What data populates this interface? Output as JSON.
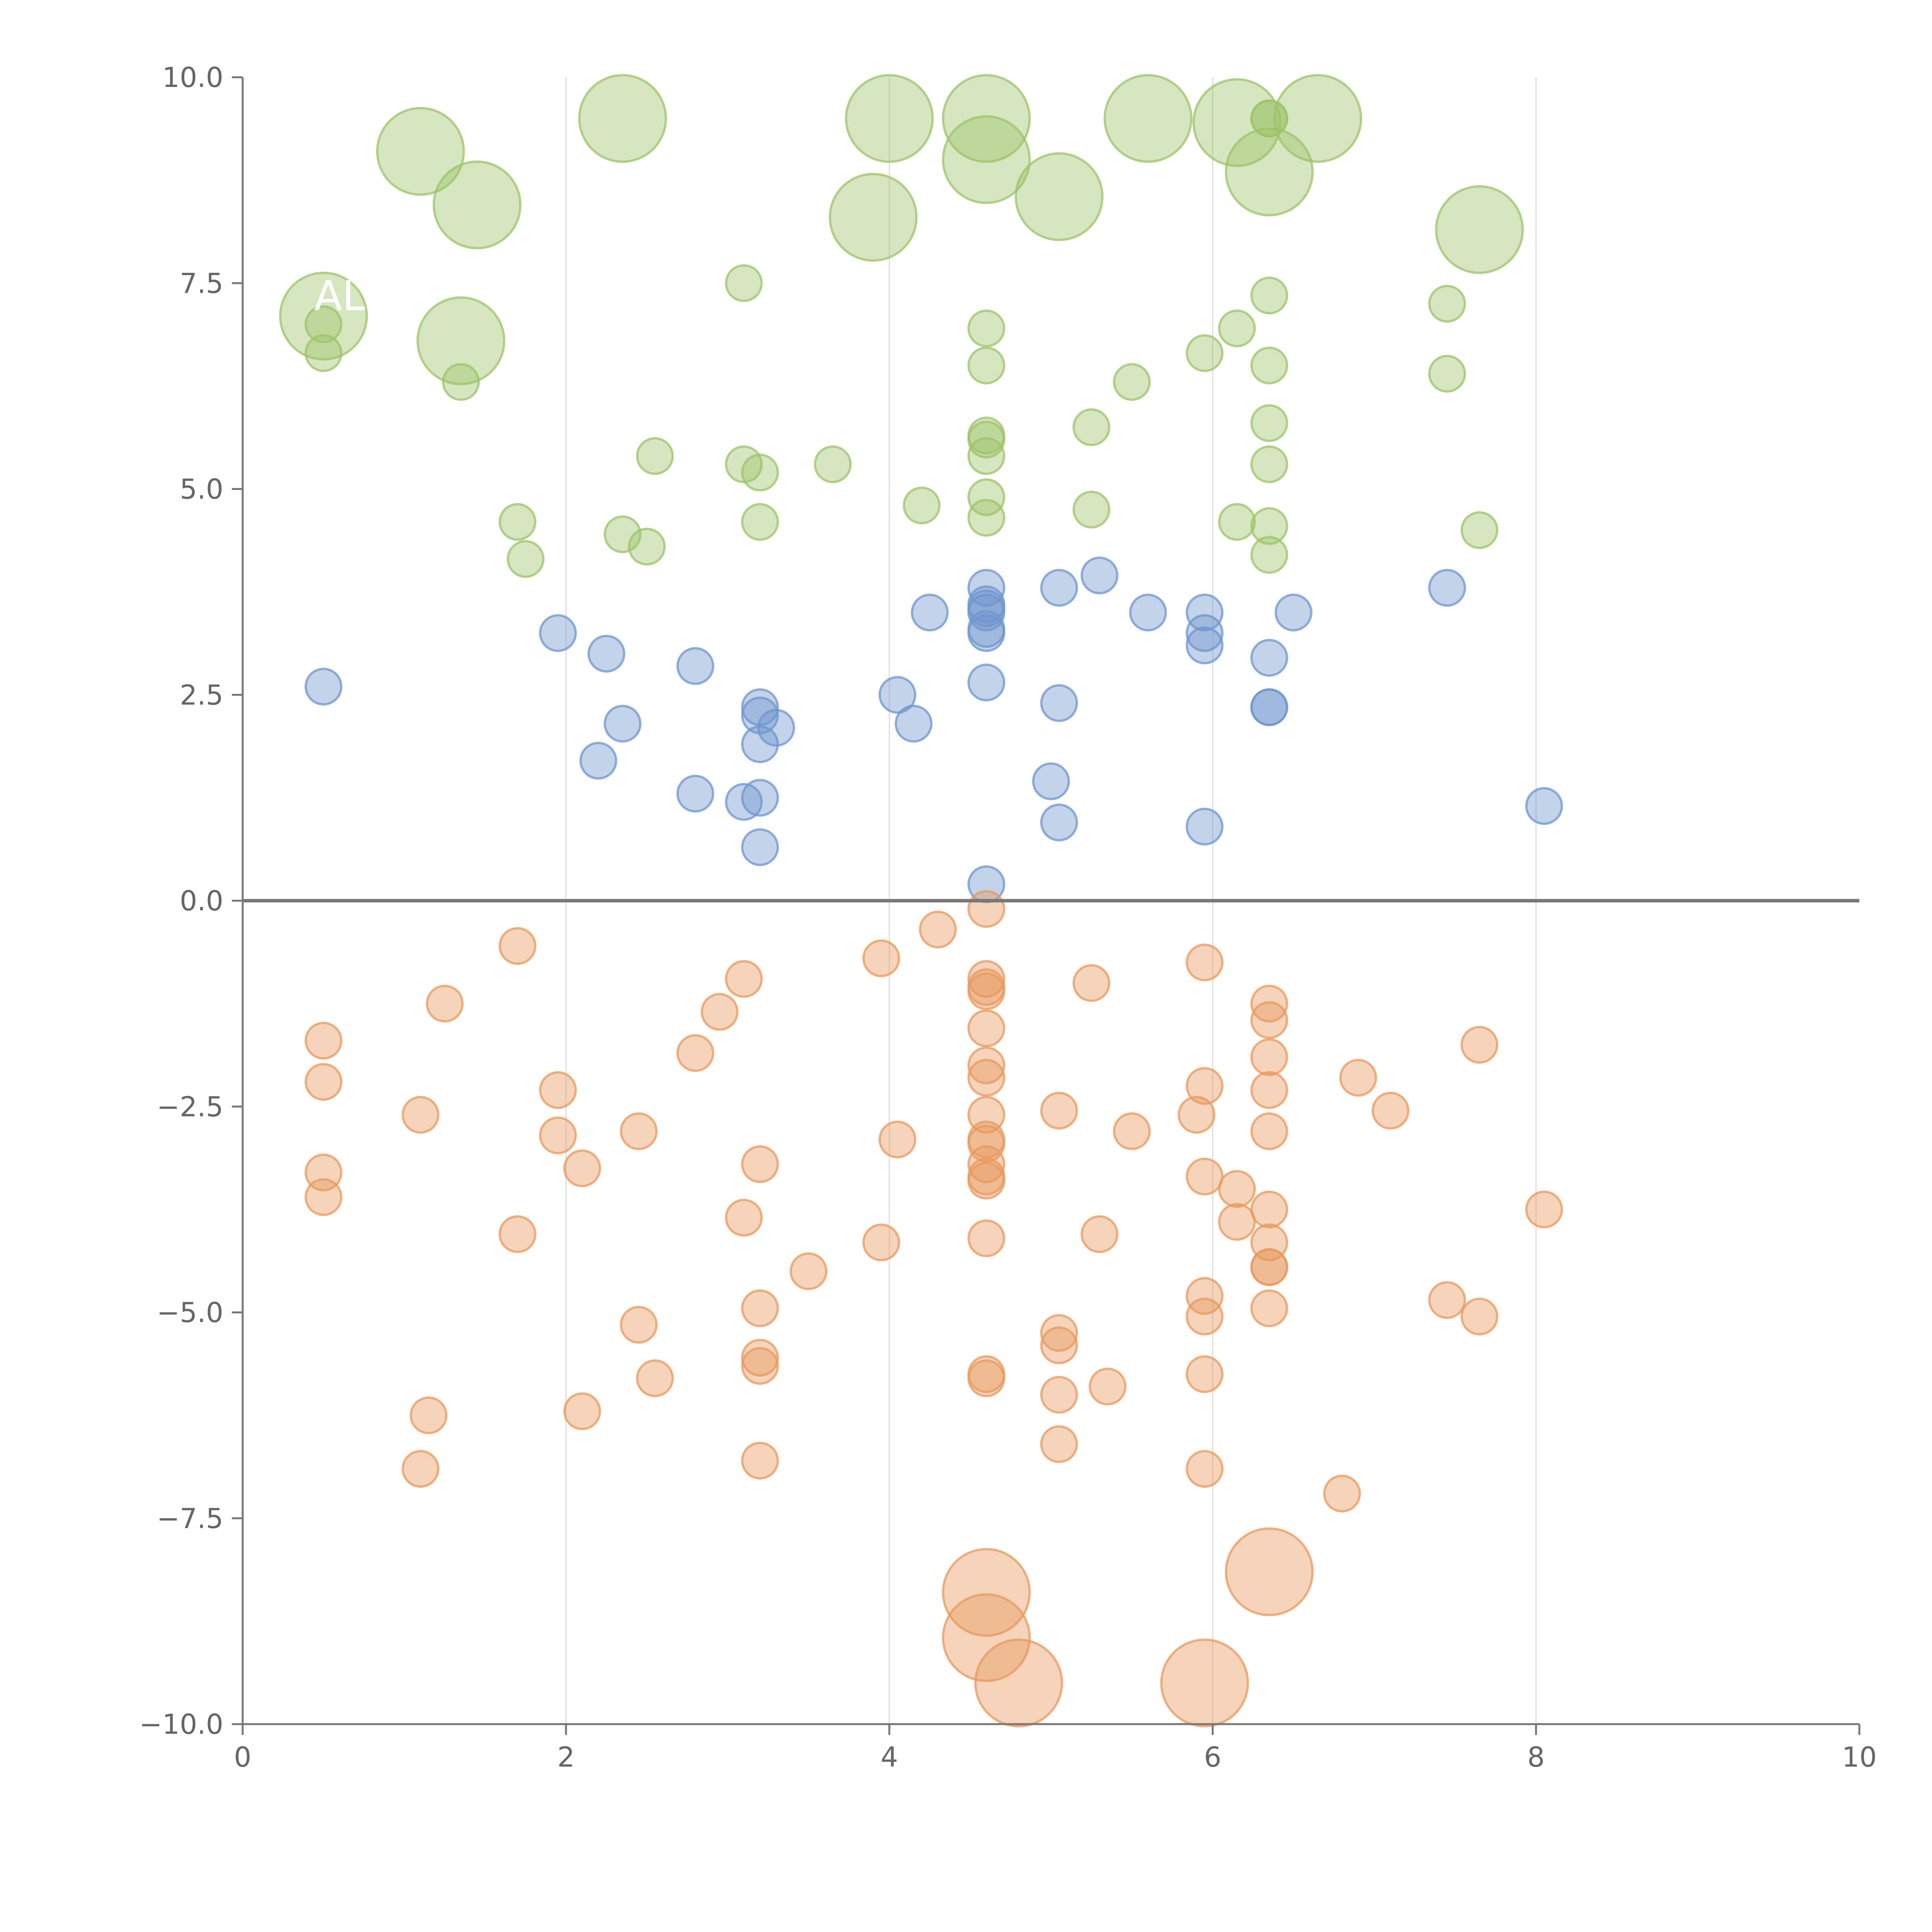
{
  "chart_data": {
    "type": "scatter",
    "title": "",
    "xlabel": "",
    "ylabel": "",
    "xlim": [
      0,
      10
    ],
    "ylim": [
      -10,
      10
    ],
    "x_ticks": [
      0,
      2,
      4,
      6,
      8,
      10
    ],
    "x_tick_labels": [
      "0",
      "2",
      "4",
      "6",
      "8",
      "10"
    ],
    "y_ticks": [
      -10,
      -7.5,
      -5,
      -2.5,
      0,
      2.5,
      5,
      7.5,
      10
    ],
    "y_tick_labels": [
      "−10.0",
      "−7.5",
      "−5.0",
      "−2.5",
      "0.0",
      "2.5",
      "5.0",
      "7.5",
      "10.0"
    ],
    "vertical_grid": true,
    "horizontal_grid": false,
    "reference_line_y": 0,
    "legend": "none",
    "colors": {
      "green": "#9dc36a",
      "blue": "#6f95cd",
      "orange": "#e8995d",
      "axis": "#777777",
      "grid": "#dddddd",
      "zero_line": "#777777"
    },
    "series": [
      {
        "color": "green",
        "points": [
          [
            0.5,
            7.0
          ],
          [
            0.5,
            6.65
          ],
          [
            1.35,
            6.3
          ],
          [
            3.1,
            7.5
          ],
          [
            4.6,
            6.95
          ],
          [
            4.6,
            6.5
          ],
          [
            4.6,
            5.65
          ],
          [
            4.6,
            5.6
          ],
          [
            4.6,
            5.4
          ],
          [
            4.6,
            4.9
          ],
          [
            4.6,
            4.65
          ],
          [
            5.5,
            6.3
          ],
          [
            5.95,
            6.65
          ],
          [
            6.15,
            6.95
          ],
          [
            6.35,
            7.35
          ],
          [
            6.35,
            6.5
          ],
          [
            6.35,
            5.8
          ],
          [
            6.35,
            5.3
          ],
          [
            6.35,
            4.55
          ],
          [
            6.35,
            4.2
          ],
          [
            7.45,
            7.25
          ],
          [
            7.45,
            6.4
          ],
          [
            7.65,
            4.5
          ],
          [
            5.25,
            5.75
          ],
          [
            5.25,
            4.75
          ],
          [
            6.15,
            4.6
          ],
          [
            4.2,
            4.8
          ],
          [
            3.65,
            5.3
          ],
          [
            3.1,
            5.3
          ],
          [
            3.2,
            5.2
          ],
          [
            3.2,
            4.6
          ],
          [
            2.55,
            5.4
          ],
          [
            2.35,
            4.45
          ],
          [
            2.5,
            4.3
          ],
          [
            1.7,
            4.6
          ],
          [
            1.75,
            4.15
          ],
          [
            6.35,
            9.5
          ],
          [
            6.35,
            9.5
          ]
        ]
      },
      {
        "color": "green",
        "size": "large",
        "points": [
          [
            0.5,
            7.1
          ],
          [
            1.35,
            6.8
          ],
          [
            1.1,
            9.1
          ],
          [
            1.45,
            8.45
          ],
          [
            2.35,
            9.5
          ],
          [
            3.9,
            8.3
          ],
          [
            4.0,
            9.5
          ],
          [
            4.6,
            9.5
          ],
          [
            4.6,
            9.0
          ],
          [
            5.05,
            8.55
          ],
          [
            5.6,
            9.5
          ],
          [
            6.15,
            9.45
          ],
          [
            6.35,
            8.85
          ],
          [
            6.65,
            9.5
          ],
          [
            7.65,
            8.15
          ]
        ]
      },
      {
        "color": "blue",
        "points": [
          [
            0.5,
            2.6
          ],
          [
            1.95,
            3.25
          ],
          [
            2.25,
            3.0
          ],
          [
            2.35,
            2.15
          ],
          [
            2.2,
            1.7
          ],
          [
            2.8,
            2.85
          ],
          [
            2.8,
            1.3
          ],
          [
            3.1,
            1.2
          ],
          [
            3.2,
            2.35
          ],
          [
            3.2,
            2.25
          ],
          [
            3.3,
            2.1
          ],
          [
            3.2,
            1.9
          ],
          [
            3.2,
            1.25
          ],
          [
            3.2,
            0.65
          ],
          [
            4.05,
            2.5
          ],
          [
            4.15,
            2.15
          ],
          [
            4.25,
            3.5
          ],
          [
            4.6,
            3.8
          ],
          [
            4.6,
            3.6
          ],
          [
            4.6,
            3.55
          ],
          [
            4.6,
            3.5
          ],
          [
            4.6,
            3.3
          ],
          [
            4.6,
            3.25
          ],
          [
            4.6,
            2.65
          ],
          [
            4.6,
            0.2
          ],
          [
            5.05,
            3.8
          ],
          [
            5.3,
            3.95
          ],
          [
            5.05,
            2.4
          ],
          [
            5.0,
            1.45
          ],
          [
            5.05,
            0.95
          ],
          [
            5.6,
            3.5
          ],
          [
            5.95,
            3.5
          ],
          [
            5.95,
            3.25
          ],
          [
            5.95,
            3.1
          ],
          [
            5.95,
            0.9
          ],
          [
            6.35,
            2.95
          ],
          [
            6.35,
            2.35
          ],
          [
            6.35,
            2.35
          ],
          [
            6.5,
            3.5
          ],
          [
            7.45,
            3.8
          ],
          [
            8.05,
            1.15
          ]
        ]
      },
      {
        "color": "orange",
        "points": [
          [
            0.5,
            -1.7
          ],
          [
            0.5,
            -2.2
          ],
          [
            0.5,
            -3.3
          ],
          [
            0.5,
            -3.6
          ],
          [
            1.1,
            -2.6
          ],
          [
            1.25,
            -1.25
          ],
          [
            1.15,
            -6.25
          ],
          [
            1.1,
            -6.9
          ],
          [
            1.7,
            -0.55
          ],
          [
            1.7,
            -4.05
          ],
          [
            1.95,
            -2.3
          ],
          [
            1.95,
            -2.85
          ],
          [
            2.1,
            -3.25
          ],
          [
            2.1,
            -6.2
          ],
          [
            2.45,
            -2.8
          ],
          [
            2.45,
            -5.15
          ],
          [
            2.55,
            -5.8
          ],
          [
            2.8,
            -1.85
          ],
          [
            2.95,
            -1.35
          ],
          [
            3.1,
            -0.95
          ],
          [
            3.1,
            -3.85
          ],
          [
            3.2,
            -3.2
          ],
          [
            3.2,
            -4.95
          ],
          [
            3.2,
            -5.55
          ],
          [
            3.2,
            -5.65
          ],
          [
            3.2,
            -6.8
          ],
          [
            3.5,
            -4.5
          ],
          [
            3.95,
            -0.7
          ],
          [
            3.95,
            -4.15
          ],
          [
            4.05,
            -2.9
          ],
          [
            4.3,
            -0.35
          ],
          [
            4.6,
            -0.1
          ],
          [
            4.6,
            -0.95
          ],
          [
            4.6,
            -1.05
          ],
          [
            4.6,
            -1.1
          ],
          [
            4.6,
            -1.55
          ],
          [
            4.6,
            -2.0
          ],
          [
            4.6,
            -2.15
          ],
          [
            4.6,
            -2.6
          ],
          [
            4.6,
            -2.9
          ],
          [
            4.6,
            -2.95
          ],
          [
            4.6,
            -3.2
          ],
          [
            4.6,
            -3.35
          ],
          [
            4.6,
            -3.4
          ],
          [
            4.6,
            -4.1
          ],
          [
            4.6,
            -5.75
          ],
          [
            4.6,
            -5.8
          ],
          [
            5.05,
            -2.55
          ],
          [
            5.05,
            -5.25
          ],
          [
            5.05,
            -5.4
          ],
          [
            5.05,
            -6.0
          ],
          [
            5.05,
            -6.6
          ],
          [
            5.3,
            -4.05
          ],
          [
            5.35,
            -5.9
          ],
          [
            5.25,
            -1.0
          ],
          [
            5.5,
            -2.8
          ],
          [
            5.95,
            -0.75
          ],
          [
            5.95,
            -2.25
          ],
          [
            5.9,
            -2.6
          ],
          [
            5.95,
            -3.35
          ],
          [
            6.15,
            -3.5
          ],
          [
            6.15,
            -3.9
          ],
          [
            5.95,
            -4.8
          ],
          [
            5.95,
            -5.05
          ],
          [
            5.95,
            -5.75
          ],
          [
            5.95,
            -6.9
          ],
          [
            6.35,
            -1.25
          ],
          [
            6.35,
            -1.45
          ],
          [
            6.35,
            -1.9
          ],
          [
            6.35,
            -2.3
          ],
          [
            6.35,
            -2.8
          ],
          [
            6.35,
            -3.75
          ],
          [
            6.35,
            -4.15
          ],
          [
            6.35,
            -4.45
          ],
          [
            6.35,
            -4.45
          ],
          [
            6.35,
            -4.95
          ],
          [
            6.9,
            -2.15
          ],
          [
            7.1,
            -2.55
          ],
          [
            6.8,
            -7.2
          ],
          [
            7.45,
            -4.85
          ],
          [
            7.65,
            -1.75
          ],
          [
            7.65,
            -5.05
          ],
          [
            8.05,
            -3.75
          ]
        ]
      },
      {
        "color": "orange",
        "size": "large",
        "points": [
          [
            4.6,
            -8.4
          ],
          [
            4.6,
            -8.95
          ],
          [
            4.8,
            -9.5
          ],
          [
            5.95,
            -9.5
          ],
          [
            6.35,
            -8.15
          ]
        ]
      }
    ],
    "point_labels": [
      {
        "text": "AL",
        "x": 0.6,
        "y": 7.35
      }
    ]
  }
}
